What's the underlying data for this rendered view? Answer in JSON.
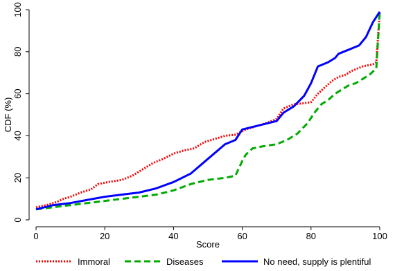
{
  "chart_data": {
    "type": "line",
    "xlabel": "Score",
    "ylabel": "CDF (%)",
    "xlim": [
      0,
      100
    ],
    "ylim": [
      0,
      100
    ],
    "xticks": [
      "0",
      "20",
      "40",
      "60",
      "80",
      "100"
    ],
    "yticks": [
      "0",
      "20",
      "40",
      "60",
      "80",
      "100"
    ],
    "grid": false,
    "legend_position": "bottom",
    "series": [
      {
        "name": "Immoral",
        "color": "#ff0000",
        "style": "dotted",
        "x": [
          0,
          3,
          6,
          8,
          10,
          13,
          16,
          18,
          21,
          25,
          28,
          31,
          34,
          37,
          40,
          43,
          46,
          49,
          52,
          55,
          58,
          61,
          64,
          67,
          70,
          72,
          75,
          78,
          80,
          82,
          84,
          86,
          88,
          90,
          92,
          95,
          98,
          99,
          100
        ],
        "y": [
          6,
          7,
          8.5,
          10,
          11,
          13,
          14.5,
          17,
          18,
          19,
          21,
          24,
          27,
          29,
          31.5,
          33,
          34,
          37,
          38.5,
          40,
          40.5,
          43,
          44.5,
          46,
          48,
          53,
          55,
          55.5,
          56,
          60,
          63,
          66,
          68,
          69,
          71,
          73,
          74,
          75,
          99
        ]
      },
      {
        "name": "Diseases",
        "color": "#00aa00",
        "style": "dashed",
        "x": [
          0,
          5,
          10,
          15,
          20,
          25,
          30,
          35,
          40,
          45,
          50,
          55,
          58,
          60,
          61,
          63,
          66,
          70,
          73,
          76,
          79,
          81,
          83,
          85,
          87,
          89,
          91,
          93,
          95,
          97,
          99,
          100
        ],
        "y": [
          5,
          6,
          7,
          8,
          9,
          10,
          11,
          12,
          14,
          17,
          19,
          20,
          21,
          28,
          31,
          34,
          35,
          36,
          38,
          41,
          46,
          51,
          55,
          57,
          60,
          62,
          64,
          65,
          67,
          69,
          72,
          99
        ]
      },
      {
        "name": "No need, supply is plentiful",
        "color": "#0000ff",
        "style": "solid",
        "x": [
          0,
          5,
          10,
          15,
          20,
          25,
          30,
          35,
          40,
          45,
          50,
          55,
          58,
          60,
          65,
          70,
          72,
          75,
          78,
          80,
          82,
          85,
          87,
          88,
          91,
          94,
          96,
          98,
          100
        ],
        "y": [
          5,
          7,
          8,
          9.5,
          11,
          12,
          13,
          15,
          18,
          22,
          29,
          36,
          38,
          43,
          45,
          47,
          51,
          54,
          59,
          65,
          73,
          75,
          77,
          79,
          81,
          83,
          87,
          94,
          99
        ]
      }
    ]
  }
}
